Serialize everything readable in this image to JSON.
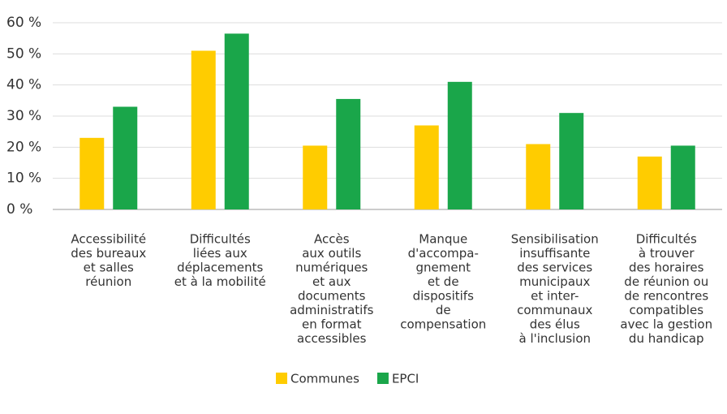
{
  "chart_data": {
    "type": "bar",
    "categories": [
      [
        "Accessibilité",
        "des bureaux",
        "et salles",
        "réunion"
      ],
      [
        "Difficultés",
        "liées aux",
        "déplacements",
        "et à la mobilité"
      ],
      [
        "Accès",
        "aux outils",
        "numériques",
        "et aux",
        "documents",
        "administratifs",
        "en format",
        "accessibles"
      ],
      [
        "Manque",
        "d'accompa-",
        "gnement",
        "et de",
        "dispositifs",
        "de",
        "compensation"
      ],
      [
        "Sensibilisation",
        "insuffisante",
        "des services",
        "municipaux",
        "et inter-",
        "communaux",
        "des élus",
        "à l'inclusion"
      ],
      [
        "Difficultés",
        "à trouver",
        "des horaires",
        "de réunion ou",
        "de rencontres",
        "compatibles",
        "avec la gestion",
        "du handicap"
      ]
    ],
    "series": [
      {
        "name": "Communes",
        "color": "#ffcc00",
        "values": [
          23,
          51,
          20.5,
          27,
          21,
          17
        ]
      },
      {
        "name": "EPCI",
        "color": "#1aa64a",
        "values": [
          33,
          56.5,
          35.5,
          41,
          31,
          20.5
        ]
      }
    ],
    "ylim": [
      0,
      60
    ],
    "yticks": [
      {
        "value": 0,
        "label": "0 %"
      },
      {
        "value": 10,
        "label": "10 %"
      },
      {
        "value": 20,
        "label": "20 %"
      },
      {
        "value": 30,
        "label": "30 %"
      },
      {
        "value": 40,
        "label": "40 %"
      },
      {
        "value": 50,
        "label": "50 %"
      },
      {
        "value": 60,
        "label": "60 %"
      }
    ],
    "grid": true
  }
}
